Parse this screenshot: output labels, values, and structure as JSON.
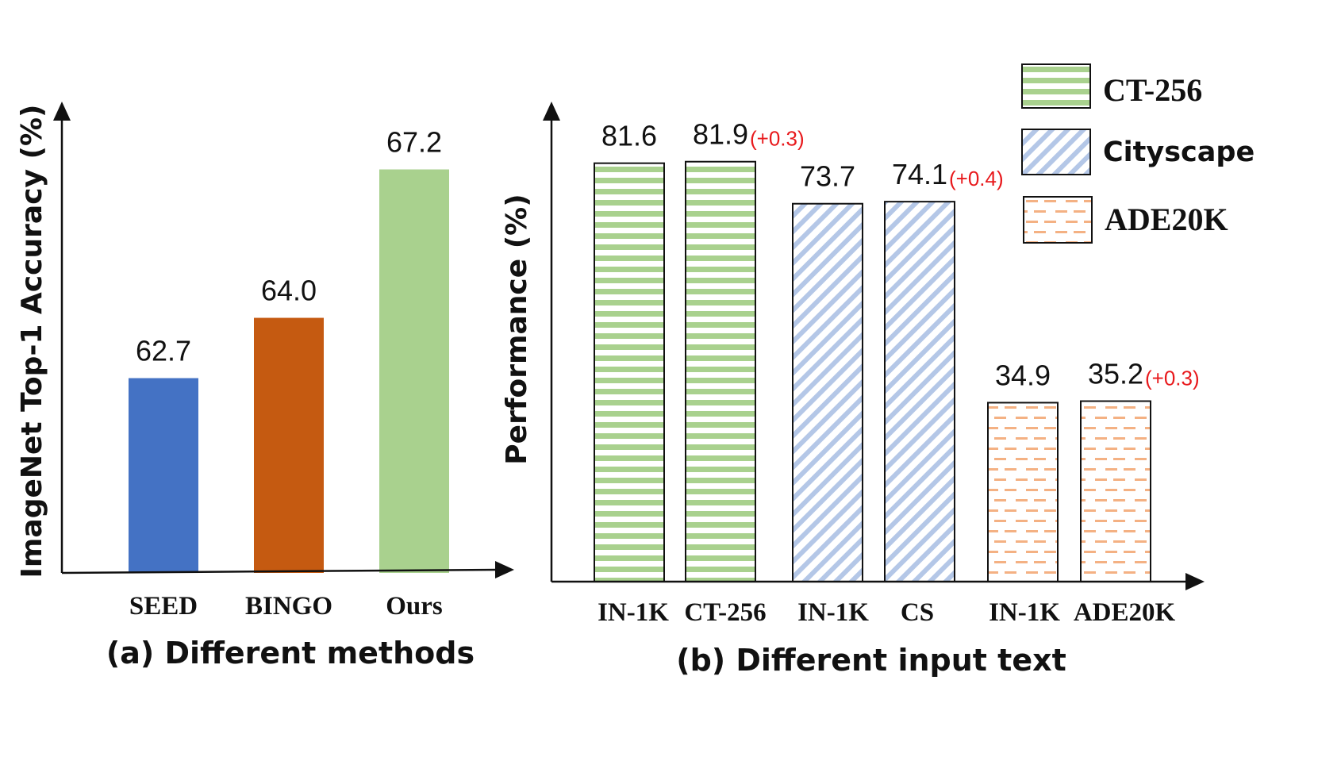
{
  "colors": {
    "seed": "#4472c4",
    "bingo": "#c55a11",
    "ours": "#a9d18e",
    "green": "#a9d18e",
    "blue": "#b4c7e7",
    "orange": "#f4b183",
    "delta": "#e8191c"
  },
  "chart_data": [
    {
      "type": "bar",
      "caption": "(a) Different methods",
      "ylabel": "ImageNet Top-1 Accuracy (%)",
      "xlabel": "",
      "ylim": [
        58.5,
        68.8
      ],
      "grid": false,
      "categories": [
        "SEED",
        "BINGO",
        "Ours"
      ],
      "values": [
        62.7,
        64.0,
        67.2
      ],
      "value_labels": [
        "62.7",
        "64.0",
        "67.2"
      ]
    },
    {
      "type": "bar",
      "caption": "(b) Different input text",
      "ylabel": "Performance (%)",
      "xlabel": "",
      "ylim": [
        0,
        93
      ],
      "grid": false,
      "legend_position": "top-right",
      "legend": [
        {
          "label": "CT-256",
          "pattern": "horizontal-stripes"
        },
        {
          "label": "Cityscape",
          "pattern": "diagonal-stripes"
        },
        {
          "label": "ADE20K",
          "pattern": "dashes"
        }
      ],
      "categories": [
        "IN-1K",
        "CT-256",
        "IN-1K",
        "CS",
        "IN-1K",
        "ADE20K"
      ],
      "values": [
        81.6,
        81.9,
        73.7,
        74.1,
        34.9,
        35.2
      ],
      "value_labels": [
        "81.6",
        "81.9",
        "73.7",
        "74.1",
        "34.9",
        "35.2"
      ],
      "deltas": [
        "",
        "(+0.3)",
        "",
        "(+0.4)",
        "",
        "(+0.3)"
      ],
      "patterns": [
        "horizontal-stripes",
        "horizontal-stripes",
        "diagonal-stripes",
        "diagonal-stripes",
        "dashes",
        "dashes"
      ]
    }
  ]
}
